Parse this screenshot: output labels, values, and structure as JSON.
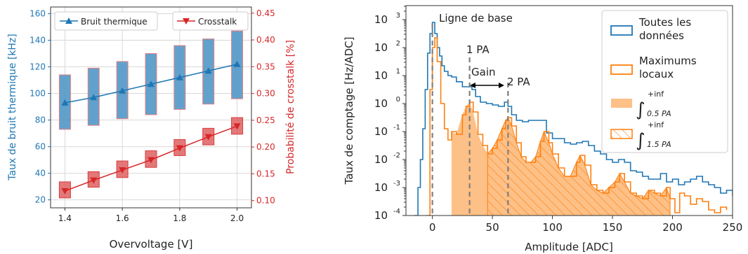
{
  "colors": {
    "blue": "#1f77b4",
    "blue_fill": "#5b9ccb",
    "red": "#d62728",
    "red_fill": "#e06a6b",
    "orange": "#ff7f0e",
    "orange_fill": "#fdc086",
    "grid": "#d9d9d9",
    "dash": "#7f7f7f"
  },
  "chart_data": [
    {
      "type": "line",
      "xlabel": "Overvoltage [V]",
      "ylabel": "Taux de bruit thermique [kHz]",
      "y2label": "Probabilité de crosstalk [%]",
      "xlim": [
        1.35,
        2.05
      ],
      "ylim": [
        14,
        165
      ],
      "y2lim": [
        0.0865,
        0.4615
      ],
      "x_ticks": [
        "1.4",
        "1.6",
        "1.8",
        "2.0"
      ],
      "x_tick_values": [
        1.4,
        1.6,
        1.8,
        2.0
      ],
      "y_ticks": [
        "20",
        "40",
        "60",
        "80",
        "100",
        "120",
        "140",
        "160"
      ],
      "y_tick_values": [
        20,
        40,
        60,
        80,
        100,
        120,
        140,
        160
      ],
      "y2_ticks": [
        "0.10",
        "0.15",
        "0.20",
        "0.25",
        "0.30",
        "0.35",
        "0.40",
        "0.45"
      ],
      "y2_tick_values": [
        0.1,
        0.15,
        0.2,
        0.25,
        0.3,
        0.35,
        0.4,
        0.45
      ],
      "grid": true,
      "legend_placement": "top",
      "series": [
        {
          "name": "Bruit thermique",
          "axis": "left",
          "x": [
            1.4,
            1.5,
            1.6,
            1.7,
            1.8,
            1.9,
            2.0
          ],
          "y": [
            93,
            97,
            102,
            107,
            112,
            117,
            122
          ],
          "band_low": [
            73,
            76,
            81,
            84,
            88,
            92,
            96
          ],
          "band_high": [
            114,
            119,
            124,
            130,
            136,
            141,
            147
          ]
        },
        {
          "name": "Crosstalk",
          "axis": "right",
          "x": [
            1.4,
            1.5,
            1.6,
            1.7,
            1.8,
            1.9,
            2.0
          ],
          "y": [
            0.118,
            0.138,
            0.157,
            0.176,
            0.198,
            0.219,
            0.239
          ],
          "band_low": [
            0.105,
            0.125,
            0.143,
            0.162,
            0.184,
            0.204,
            0.224
          ],
          "band_high": [
            0.135,
            0.154,
            0.174,
            0.193,
            0.214,
            0.235,
            0.255
          ]
        }
      ]
    },
    {
      "type": "area",
      "xlabel": "Amplitude [ADC]",
      "ylabel": "Taux de comptage [Hz/ADC]",
      "xlim": [
        -22,
        250
      ],
      "y_log_exp_range": [
        -4,
        3.5
      ],
      "y_scale": "log",
      "x_ticks": [
        "0",
        "50",
        "100",
        "150",
        "200",
        "250"
      ],
      "x_tick_values": [
        0,
        50,
        100,
        150,
        200,
        250
      ],
      "y_ticks": [
        "-4",
        "-3",
        "-2",
        "-1",
        "0",
        "1",
        "2",
        "3"
      ],
      "y_tick_values": [
        -4,
        -3,
        -2,
        -1,
        0,
        1,
        2,
        3
      ],
      "legend_placement": "upper right",
      "legend": {
        "all_data": [
          "Toutes les",
          "données"
        ],
        "local_max": [
          "Maximums",
          "locaux"
        ],
        "int_05": {
          "upper": "+inf",
          "lower": "0.5 PA"
        },
        "int_15": {
          "upper": "+inf",
          "lower": "1.5 PA"
        }
      },
      "annotations": {
        "baseline": "Ligne de base",
        "pe1": "1 PA",
        "pe2": "2 PA",
        "gain": "Gain"
      },
      "reference_lines_x": [
        0,
        31,
        63
      ],
      "fill_05_from": 16,
      "fill_15_from": 46,
      "fill_to": 198,
      "series": [
        {
          "name": "Toutes les données",
          "x": [
            -15,
            -12,
            -10,
            -8,
            -6,
            -4,
            -2,
            0,
            2,
            4,
            6,
            8,
            10,
            13,
            16,
            20,
            25,
            30,
            33,
            36,
            40,
            45,
            50,
            55,
            60,
            63,
            66,
            70,
            75,
            80,
            85,
            90,
            95,
            100,
            105,
            110,
            115,
            120,
            125,
            130,
            135,
            140,
            145,
            150,
            155,
            160,
            165,
            170,
            175,
            180,
            185,
            190,
            195,
            200,
            205,
            210,
            215,
            220,
            225,
            230,
            235,
            240,
            245,
            250
          ],
          "y_log10": [
            -4,
            -3.0,
            -2.0,
            -0.9,
            0.5,
            1.8,
            2.5,
            2.9,
            2.5,
            2.0,
            1.7,
            1.35,
            1.15,
            1.0,
            0.95,
            0.78,
            0.6,
            0.6,
            0.5,
            0.25,
            0.05,
            0.0,
            -0.05,
            -0.1,
            0.05,
            -0.1,
            -0.4,
            -0.6,
            -0.65,
            -0.6,
            -0.6,
            -0.6,
            -1.05,
            -1.25,
            -1.25,
            -1.4,
            -1.45,
            -1.4,
            -1.35,
            -1.5,
            -1.7,
            -1.8,
            -2.0,
            -2.1,
            -2.0,
            -2.1,
            -2.4,
            -2.45,
            -2.6,
            -2.7,
            -2.7,
            -2.5,
            -2.8,
            -2.7,
            -2.9,
            -2.8,
            -2.7,
            -2.6,
            -2.8,
            -2.9,
            -3.0,
            -3.2,
            -3.1,
            -3.3
          ]
        },
        {
          "name": "Maximums locaux",
          "x": [
            -5,
            -2,
            0,
            2,
            4,
            7,
            10,
            13,
            16,
            20,
            25,
            28,
            31,
            34,
            38,
            42,
            46,
            50,
            54,
            58,
            61,
            63,
            66,
            70,
            74,
            78,
            82,
            86,
            90,
            93,
            97,
            100,
            105,
            110,
            115,
            120,
            123,
            127,
            132,
            137,
            142,
            147,
            152,
            156,
            160,
            165,
            170,
            175,
            180,
            185,
            190,
            195,
            198,
            202,
            206,
            210,
            215,
            220,
            225,
            230,
            235,
            240,
            245
          ],
          "y_log10": [
            -4,
            0.5,
            2.0,
            2.35,
            1.5,
            0.0,
            -0.9,
            -1.3,
            -1.0,
            -1.1,
            -0.4,
            -0.1,
            0.05,
            -0.3,
            -1.1,
            -1.5,
            -1.8,
            -1.6,
            -1.3,
            -0.9,
            -0.6,
            -0.5,
            -0.8,
            -1.4,
            -1.9,
            -2.1,
            -2.1,
            -1.9,
            -1.35,
            -1.0,
            -1.4,
            -1.8,
            -2.3,
            -2.6,
            -2.6,
            -2.1,
            -1.85,
            -2.2,
            -2.9,
            -3.1,
            -3.2,
            -3.0,
            -2.8,
            -2.5,
            -2.8,
            -3.2,
            -3.3,
            -3.4,
            -3.1,
            -3.2,
            -3.3,
            -3.0,
            -3.4,
            -3.9,
            -3.2,
            -3.3,
            -3.6,
            -3.4,
            -3.5,
            -3.8,
            -3.9,
            -3.7,
            -3.8
          ]
        }
      ]
    }
  ]
}
